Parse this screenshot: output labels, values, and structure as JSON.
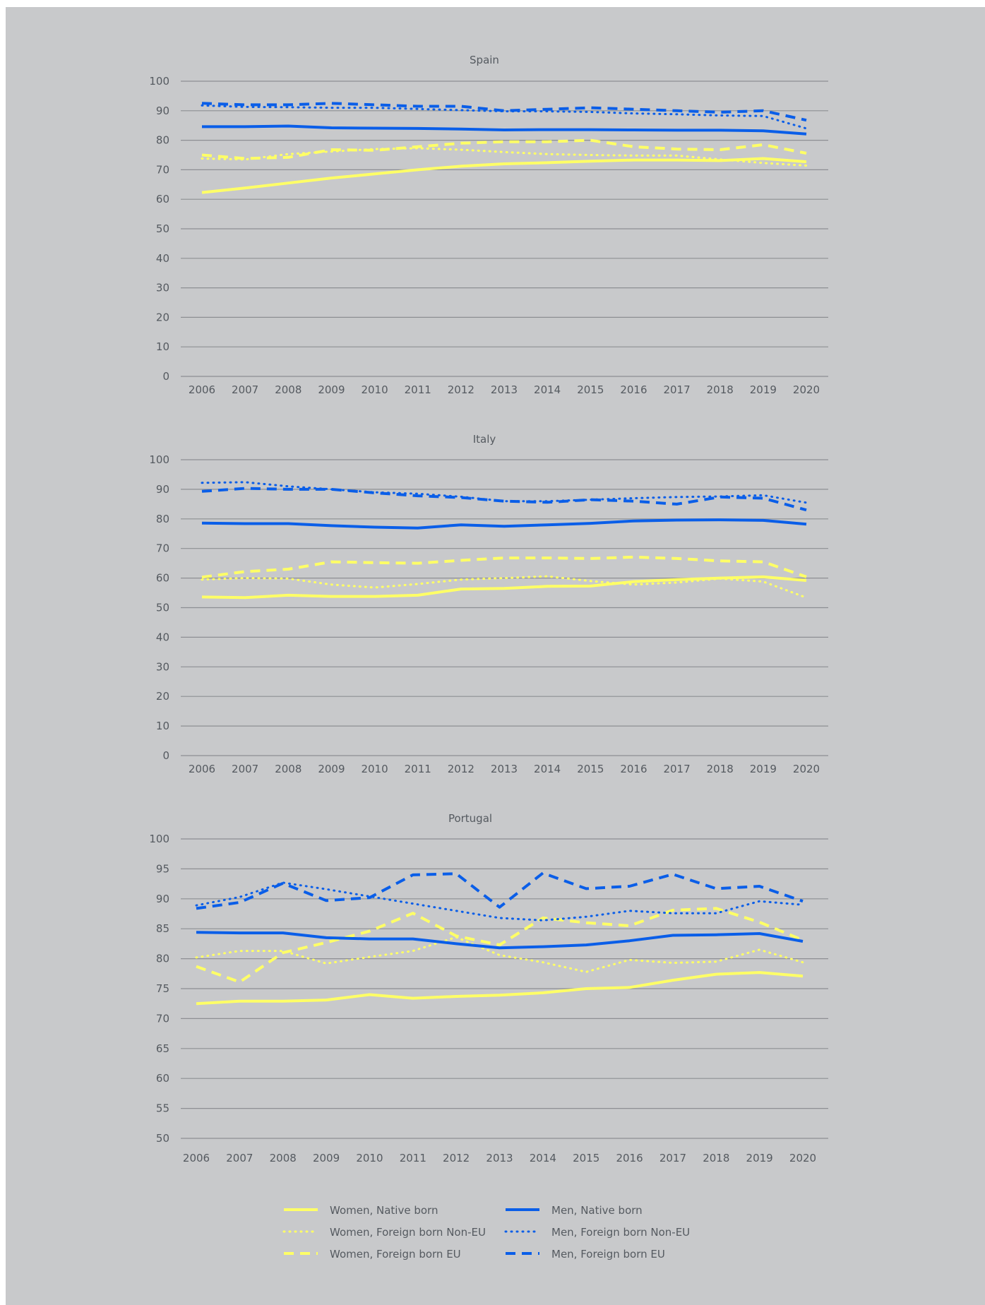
{
  "colors": {
    "background": "#c8c9cb",
    "women": "#ffff66",
    "men": "#0a5ee8",
    "grid": "#8d8f93",
    "text": "#555a60"
  },
  "series_styles": [
    {
      "key": "wn",
      "color": "women",
      "dash": "solid"
    },
    {
      "key": "wf",
      "color": "women",
      "dash": "dotted"
    },
    {
      "key": "we",
      "color": "women",
      "dash": "dashed"
    },
    {
      "key": "mn",
      "color": "men",
      "dash": "solid"
    },
    {
      "key": "mf",
      "color": "men",
      "dash": "dotted"
    },
    {
      "key": "me",
      "color": "men",
      "dash": "dashed"
    }
  ],
  "legend": [
    {
      "key": "wn",
      "label": "Women, Native born"
    },
    {
      "key": "wf",
      "label": "Women, Foreign born Non-EU"
    },
    {
      "key": "we",
      "label": "Women, Foreign born EU"
    },
    {
      "key": "mn",
      "label": "Men, Native born"
    },
    {
      "key": "mf",
      "label": "Men, Foreign born Non-EU"
    },
    {
      "key": "me",
      "label": "Men, Foreign born EU"
    }
  ],
  "chart_data": [
    {
      "type": "line",
      "title": "Spain",
      "x": [
        "2006",
        "2007",
        "2008",
        "2009",
        "2010",
        "2011",
        "2012",
        "2013",
        "2014",
        "2015",
        "2016",
        "2017",
        "2018",
        "2019",
        "2020"
      ],
      "ylim": [
        0,
        100
      ],
      "yticks": [
        0,
        10,
        20,
        30,
        40,
        50,
        60,
        70,
        80,
        90,
        100
      ],
      "grid": true,
      "series": [
        {
          "key": "wn",
          "name": "Women, Native born",
          "values": [
            62.3,
            63.8,
            65.5,
            67.2,
            68.6,
            70.0,
            71.2,
            72.0,
            72.4,
            72.9,
            73.3,
            73.3,
            73.1,
            73.8,
            72.7
          ]
        },
        {
          "key": "wf",
          "name": "Women, Foreign born Non-EU",
          "values": [
            73.8,
            73.5,
            75.3,
            76.2,
            77.0,
            77.3,
            76.8,
            76.0,
            75.3,
            75.0,
            74.8,
            74.8,
            73.5,
            72.3,
            71.4
          ]
        },
        {
          "key": "we",
          "name": "Women, Foreign born EU",
          "values": [
            75.0,
            73.8,
            74.2,
            76.8,
            76.6,
            77.8,
            79.0,
            79.5,
            79.5,
            80.0,
            77.8,
            77.0,
            76.8,
            78.5,
            75.6
          ]
        },
        {
          "key": "mn",
          "name": "Men, Native born",
          "values": [
            84.6,
            84.6,
            84.8,
            84.2,
            84.1,
            84.0,
            83.8,
            83.5,
            83.6,
            83.6,
            83.5,
            83.4,
            83.4,
            83.2,
            82.1
          ]
        },
        {
          "key": "mf",
          "name": "Men, Foreign born Non-EU",
          "values": [
            91.8,
            91.3,
            91.2,
            91.0,
            91.0,
            90.6,
            90.2,
            89.8,
            89.8,
            89.6,
            89.1,
            88.8,
            88.4,
            88.2,
            84.0
          ]
        },
        {
          "key": "me",
          "name": "Men, Foreign born EU",
          "values": [
            92.5,
            92.0,
            92.0,
            92.5,
            92.0,
            91.5,
            91.5,
            90.0,
            90.5,
            91.0,
            90.5,
            90.0,
            89.5,
            90.0,
            86.8
          ]
        }
      ]
    },
    {
      "type": "line",
      "title": "Italy",
      "x": [
        "2006",
        "2007",
        "2008",
        "2009",
        "2010",
        "2011",
        "2012",
        "2013",
        "2014",
        "2015",
        "2016",
        "2017",
        "2018",
        "2019",
        "2020"
      ],
      "ylim": [
        0,
        100
      ],
      "yticks": [
        0,
        10,
        20,
        30,
        40,
        50,
        60,
        70,
        80,
        90,
        100
      ],
      "grid": true,
      "series": [
        {
          "key": "wn",
          "name": "Women, Native born",
          "values": [
            53.6,
            53.4,
            54.2,
            53.8,
            53.8,
            54.2,
            56.3,
            56.5,
            57.2,
            57.3,
            58.8,
            59.5,
            60.0,
            60.4,
            59.2
          ]
        },
        {
          "key": "wf",
          "name": "Women, Foreign born Non-EU",
          "values": [
            59.5,
            60.0,
            59.8,
            57.8,
            56.8,
            58.0,
            59.5,
            60.0,
            60.6,
            59.0,
            57.8,
            58.5,
            59.8,
            58.8,
            53.4
          ]
        },
        {
          "key": "we",
          "name": "Women, Foreign born EU",
          "values": [
            60.3,
            62.2,
            63.0,
            65.5,
            65.2,
            65.0,
            66.0,
            66.8,
            66.8,
            66.6,
            67.1,
            66.6,
            65.8,
            65.5,
            60.4
          ]
        },
        {
          "key": "mn",
          "name": "Men, Native born",
          "values": [
            78.6,
            78.4,
            78.4,
            77.7,
            77.2,
            76.9,
            78.0,
            77.5,
            78.0,
            78.5,
            79.3,
            79.6,
            79.7,
            79.5,
            78.2
          ]
        },
        {
          "key": "mf",
          "name": "Men, Foreign born Non-EU",
          "values": [
            92.2,
            92.4,
            91.0,
            90.0,
            89.0,
            88.5,
            87.5,
            86.0,
            86.0,
            86.5,
            87.0,
            87.4,
            87.6,
            88.0,
            85.5
          ]
        },
        {
          "key": "me",
          "name": "Men, Foreign born EU",
          "values": [
            89.3,
            90.3,
            90.0,
            90.0,
            88.8,
            87.8,
            87.2,
            86.0,
            85.6,
            86.5,
            86.0,
            85.0,
            87.4,
            87.0,
            83.0
          ]
        }
      ]
    },
    {
      "type": "line",
      "title": "Portugal",
      "x": [
        "2006",
        "2007",
        "2008",
        "2009",
        "2010",
        "2011",
        "2012",
        "2013",
        "2014",
        "2015",
        "2016",
        "2017",
        "2018",
        "2019",
        "2020"
      ],
      "ylim": [
        50,
        100
      ],
      "yticks": [
        50,
        55,
        60,
        65,
        70,
        75,
        80,
        85,
        90,
        95,
        100
      ],
      "grid": true,
      "series": [
        {
          "key": "wn",
          "name": "Women, Native born",
          "values": [
            72.5,
            72.9,
            72.9,
            73.1,
            74.0,
            73.4,
            73.7,
            73.9,
            74.3,
            75.0,
            75.2,
            76.4,
            77.4,
            77.7,
            77.1
          ]
        },
        {
          "key": "wf",
          "name": "Women, Foreign born Non-EU",
          "values": [
            80.2,
            81.3,
            81.3,
            79.2,
            80.3,
            81.3,
            83.6,
            80.6,
            79.4,
            77.8,
            79.8,
            79.3,
            79.5,
            81.5,
            79.4
          ]
        },
        {
          "key": "we",
          "name": "Women, Foreign born EU",
          "values": [
            78.7,
            76.1,
            81.0,
            82.7,
            84.6,
            87.6,
            83.8,
            82.3,
            86.8,
            86.0,
            85.5,
            88.1,
            88.4,
            86.1,
            83.1
          ]
        },
        {
          "key": "mn",
          "name": "Men, Native born",
          "values": [
            84.4,
            84.3,
            84.3,
            83.5,
            83.3,
            83.3,
            82.5,
            81.8,
            82.0,
            82.3,
            83.0,
            83.9,
            84.0,
            84.2,
            82.9
          ]
        },
        {
          "key": "mf",
          "name": "Men, Foreign born Non-EU",
          "values": [
            88.9,
            90.3,
            92.7,
            91.6,
            90.4,
            89.2,
            88.0,
            86.8,
            86.4,
            87.0,
            88.0,
            87.6,
            87.6,
            89.6,
            89.0
          ]
        },
        {
          "key": "me",
          "name": "Men, Foreign born EU",
          "values": [
            88.4,
            89.4,
            92.6,
            89.7,
            90.2,
            94.0,
            94.2,
            88.6,
            94.3,
            91.7,
            92.1,
            94.1,
            91.7,
            92.1,
            89.6
          ]
        }
      ]
    }
  ]
}
